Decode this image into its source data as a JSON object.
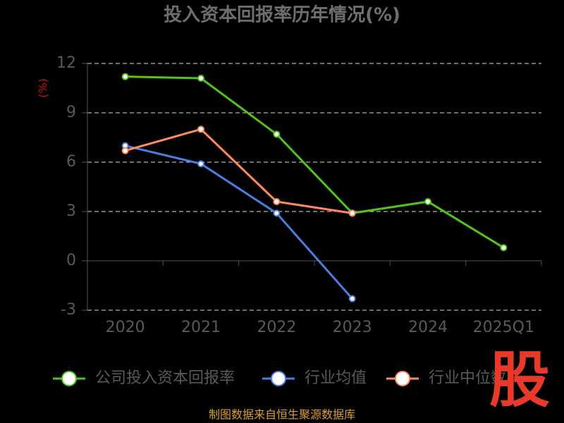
{
  "chart_data": {
    "type": "line",
    "title": "投入资本回报率历年情况(%)",
    "y_label": "(%)",
    "categories": [
      "2020",
      "2021",
      "2022",
      "2023",
      "2024",
      "2025Q1"
    ],
    "series": [
      {
        "name": "公司投入资本回报率",
        "color": "#52c41a",
        "values": [
          11.2,
          11.1,
          7.7,
          2.9,
          3.6,
          0.8
        ]
      },
      {
        "name": "行业均值",
        "color": "#4a7ee0",
        "values": [
          7.0,
          5.9,
          2.9,
          -2.3,
          null,
          null
        ]
      },
      {
        "name": "行业中位数",
        "color": "#ff8a5c",
        "values": [
          6.7,
          8.0,
          3.6,
          2.9,
          null,
          null
        ]
      }
    ],
    "ylim": [
      -3,
      12
    ],
    "yticks": [
      -3,
      0,
      3,
      6,
      9,
      12
    ],
    "grid": true,
    "source": "制图数据来自恒生聚源数据库",
    "watermark": "股"
  }
}
